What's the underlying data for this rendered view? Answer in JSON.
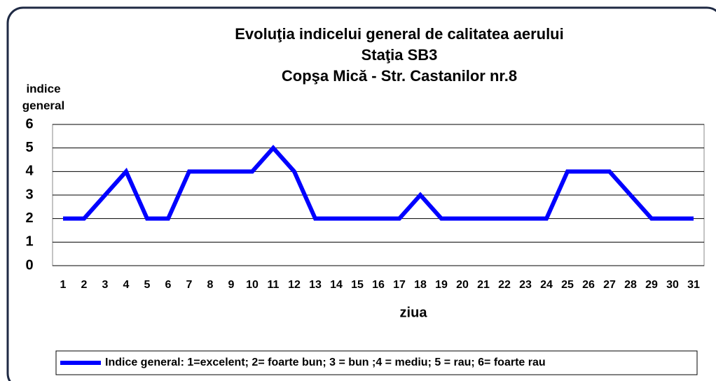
{
  "chart_data": {
    "type": "line",
    "title": [
      "Evoluţia  indicelui general de calitatea aerului",
      "Staţia SB3",
      "Copşa Mică - Str. Castanilor nr.8"
    ],
    "ylabel": [
      "indice",
      "general"
    ],
    "xlabel": "ziua",
    "categories": [
      "1",
      "2",
      "3",
      "4",
      "5",
      "6",
      "7",
      "8",
      "9",
      "10",
      "11",
      "12",
      "13",
      "14",
      "15",
      "16",
      "17",
      "18",
      "19",
      "20",
      "21",
      "22",
      "23",
      "24",
      "25",
      "26",
      "27",
      "28",
      "29",
      "30",
      "31"
    ],
    "series": [
      {
        "name": "Indice general: 1=excelent; 2= foarte bun; 3 = bun ;4 = mediu; 5 = rau; 6= foarte rau",
        "color": "#0000ff",
        "values": [
          2,
          2,
          3,
          4,
          2,
          2,
          4,
          4,
          4,
          4,
          5,
          4,
          2,
          2,
          2,
          2,
          2,
          3,
          2,
          2,
          2,
          2,
          2,
          2,
          4,
          4,
          4,
          3,
          2,
          2,
          2
        ]
      }
    ],
    "ylim": [
      0,
      6
    ],
    "yticks": [
      0,
      1,
      2,
      3,
      4,
      5,
      6
    ],
    "grid": true,
    "legend": "bottom"
  }
}
